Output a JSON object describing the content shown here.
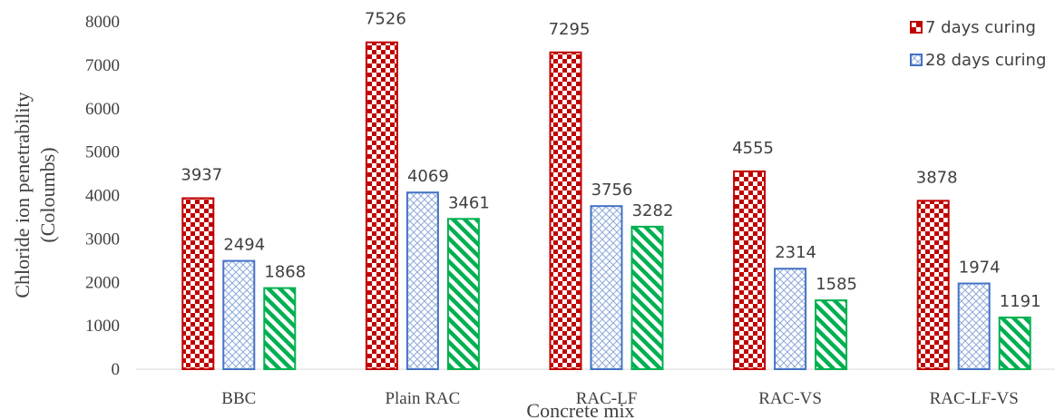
{
  "chart_data": {
    "type": "bar",
    "title": "",
    "xlabel": "Concrete mix",
    "ylabel_line1": "Chloride ion penetrability",
    "ylabel_line2": "(Coloumbs)",
    "ylim": [
      0,
      8000
    ],
    "yticks": [
      0,
      1000,
      2000,
      3000,
      4000,
      5000,
      6000,
      7000,
      8000
    ],
    "grid": false,
    "legend_position": "top-right",
    "categories": [
      "BBC",
      "Plain RAC",
      "RAC-LF",
      "RAC-VS",
      "RAC-LF-VS"
    ],
    "series": [
      {
        "name": "7 days curing",
        "values": [
          3937,
          7526,
          7295,
          4555,
          3878
        ],
        "color": "#c00000",
        "pattern": "checker"
      },
      {
        "name": "28 days curing",
        "values": [
          2494,
          4069,
          3756,
          2314,
          1974
        ],
        "color": "#4472c4",
        "pattern": "crosshatch"
      },
      {
        "name": "",
        "values": [
          1868,
          3461,
          3282,
          1585,
          1191
        ],
        "color": "#00b050",
        "pattern": "diagonal"
      }
    ]
  }
}
